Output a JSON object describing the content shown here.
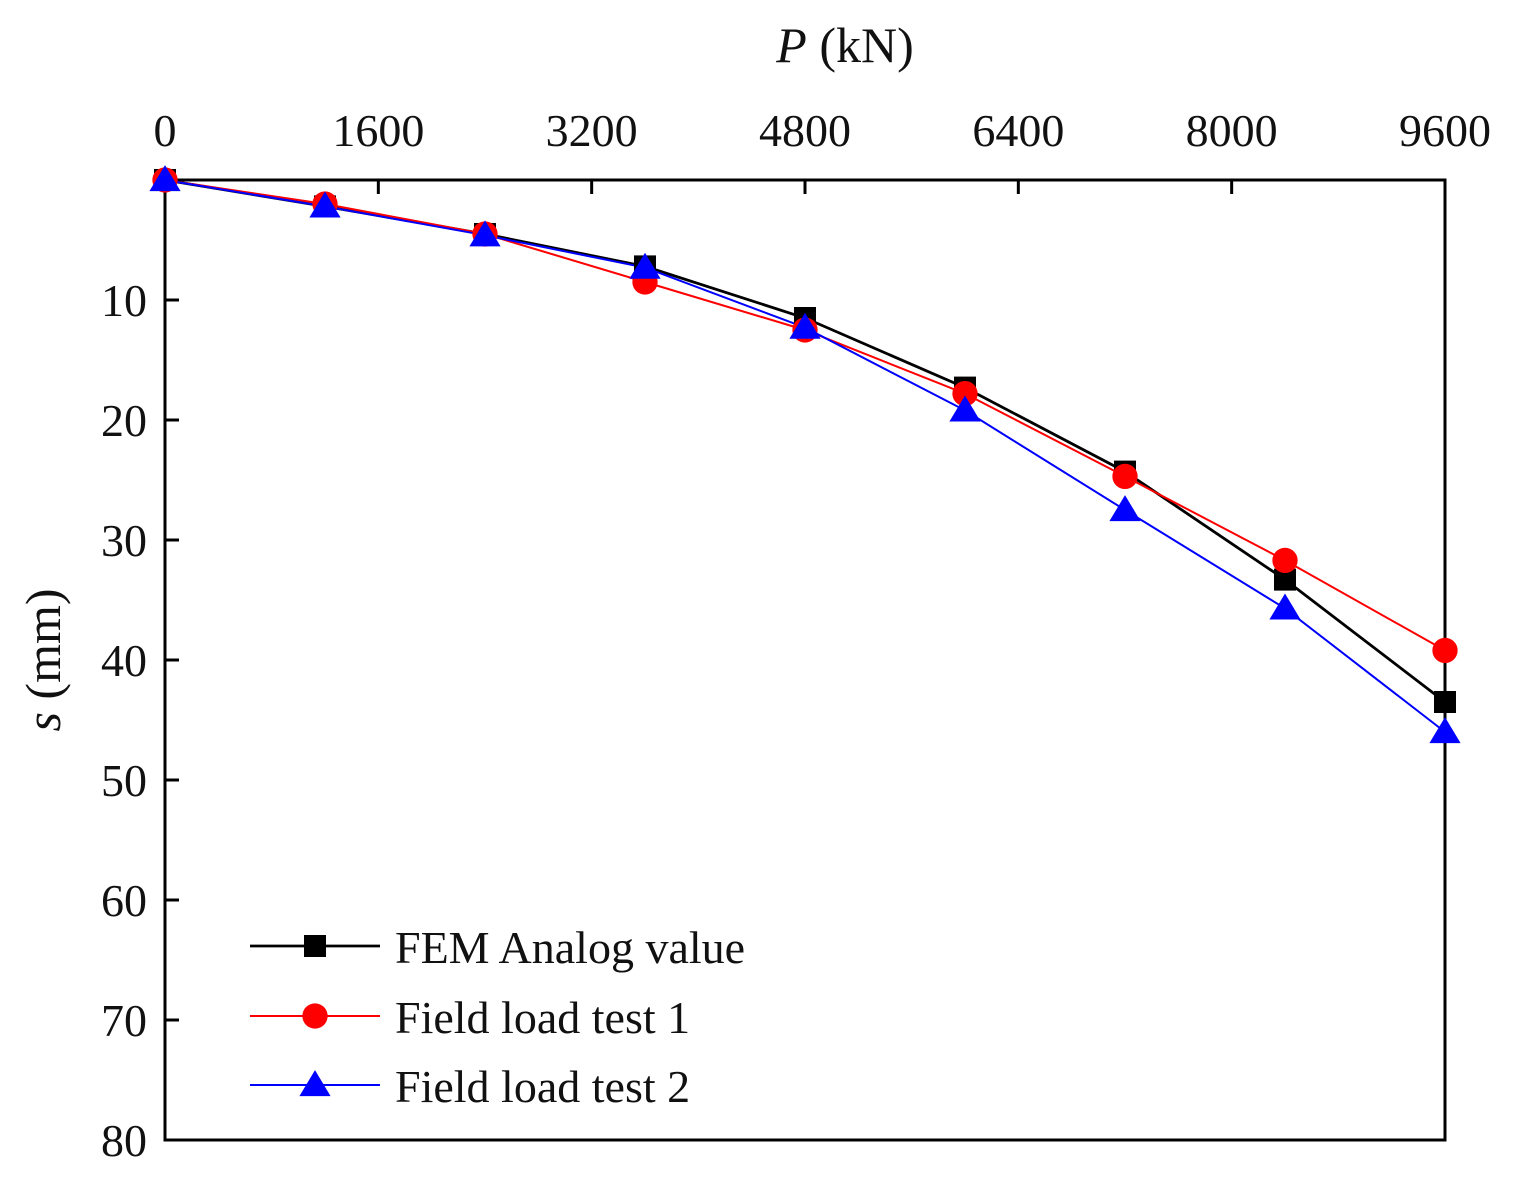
{
  "chart_data": {
    "type": "line",
    "title": "",
    "x_axis": {
      "label_symbol": "P",
      "label_unit": " (kN)",
      "position": "top",
      "range": [
        0,
        9600
      ],
      "ticks": [
        0,
        1600,
        3200,
        4800,
        6400,
        8000,
        9600
      ],
      "tick_labels": [
        "0",
        "1600",
        "3200",
        "4800",
        "6400",
        "8000",
        "9600"
      ]
    },
    "y_axis": {
      "label_symbol": "s",
      "label_unit": " (mm)",
      "inverted": true,
      "range": [
        0,
        80
      ],
      "ticks": [
        10,
        20,
        30,
        40,
        50,
        60,
        70,
        80
      ],
      "tick_labels": [
        "10",
        "20",
        "30",
        "40",
        "50",
        "60",
        "70",
        "80"
      ]
    },
    "grid": false,
    "legend_position": "bottom-left",
    "x": [
      0,
      1200,
      2400,
      3600,
      4800,
      6000,
      7200,
      8400,
      9600
    ],
    "series": [
      {
        "name": "FEM Analog value",
        "color": "#000000",
        "marker": "square",
        "values": [
          0,
          2.2,
          4.5,
          7.2,
          11.5,
          17.3,
          24.3,
          33.3,
          43.5
        ]
      },
      {
        "name": "Field load test 1",
        "color": "#ff0000",
        "marker": "circle",
        "values": [
          0,
          2.0,
          4.5,
          8.5,
          12.5,
          17.8,
          24.7,
          31.7,
          39.2
        ]
      },
      {
        "name": "Field load test 2",
        "color": "#0000ff",
        "marker": "triangle",
        "values": [
          0,
          2.2,
          4.6,
          7.3,
          12.3,
          19.2,
          27.5,
          35.7,
          46.0
        ]
      }
    ]
  }
}
